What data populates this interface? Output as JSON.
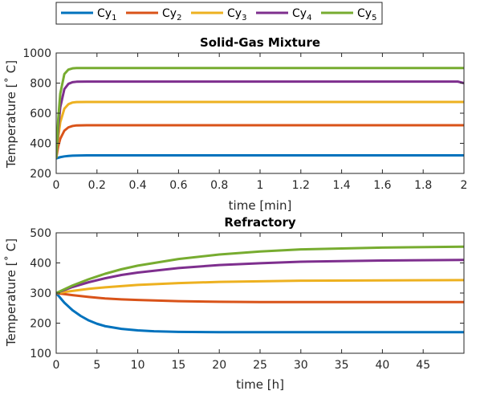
{
  "legend": {
    "entries": [
      {
        "base": "Cy",
        "sub": "1",
        "color": "#0072BD"
      },
      {
        "base": "Cy",
        "sub": "2",
        "color": "#D95319"
      },
      {
        "base": "Cy",
        "sub": "3",
        "color": "#EDB120"
      },
      {
        "base": "Cy",
        "sub": "4",
        "color": "#7E2F8E"
      },
      {
        "base": "Cy",
        "sub": "5",
        "color": "#77AC30"
      }
    ]
  },
  "chart_data": [
    {
      "type": "line",
      "title": "Solid-Gas Mixture",
      "xlabel": "time [min]",
      "ylabel": "Temperature [˚ C]",
      "xlim": [
        0,
        2
      ],
      "ylim": [
        200,
        1000
      ],
      "xticks": [
        "0",
        "0.2",
        "0.4",
        "0.6",
        "0.8",
        "1",
        "1.2",
        "1.4",
        "1.6",
        "1.8",
        "2"
      ],
      "yticks": [
        "200",
        "400",
        "600",
        "800",
        "1000"
      ],
      "grid": false,
      "series": [
        {
          "name": "Cy1",
          "color": "#0072BD",
          "x": [
            0,
            0.01,
            0.02,
            0.04,
            0.06,
            0.08,
            0.1,
            0.15,
            0.2,
            0.3,
            0.5,
            1.0,
            1.5,
            2.0
          ],
          "y": [
            300,
            304,
            308,
            313,
            316,
            318,
            319,
            320,
            320,
            320,
            320,
            320,
            320,
            320
          ]
        },
        {
          "name": "Cy2",
          "color": "#D95319",
          "x": [
            0,
            0.01,
            0.02,
            0.04,
            0.06,
            0.08,
            0.1,
            0.15,
            0.2,
            0.3,
            0.5,
            1.0,
            1.5,
            2.0
          ],
          "y": [
            300,
            380,
            430,
            484,
            506,
            515,
            519,
            520,
            520,
            520,
            520,
            520,
            520,
            520
          ]
        },
        {
          "name": "Cy3",
          "color": "#EDB120",
          "x": [
            0,
            0.01,
            0.02,
            0.04,
            0.06,
            0.08,
            0.1,
            0.15,
            0.2,
            0.3,
            0.5,
            1.0,
            1.5,
            2.0
          ],
          "y": [
            300,
            440,
            540,
            630,
            660,
            671,
            674,
            675,
            675,
            675,
            675,
            675,
            675,
            675
          ]
        },
        {
          "name": "Cy4",
          "color": "#7E2F8E",
          "x": [
            0,
            0.01,
            0.02,
            0.04,
            0.06,
            0.08,
            0.1,
            0.15,
            0.2,
            0.3,
            0.5,
            1.0,
            1.5,
            1.97,
            2.0
          ],
          "y": [
            300,
            500,
            640,
            760,
            795,
            806,
            809,
            810,
            810,
            810,
            810,
            810,
            810,
            810,
            800
          ]
        },
        {
          "name": "Cy5",
          "color": "#77AC30",
          "x": [
            0,
            0.01,
            0.02,
            0.04,
            0.06,
            0.08,
            0.1,
            0.15,
            0.2,
            0.3,
            0.5,
            1.0,
            1.5,
            2.0
          ],
          "y": [
            300,
            560,
            730,
            860,
            890,
            898,
            900,
            900,
            900,
            900,
            900,
            900,
            900,
            900
          ]
        }
      ]
    },
    {
      "type": "line",
      "title": "Refractory",
      "xlabel": "time [h]",
      "ylabel": "Temperature [˚ C]",
      "xlim": [
        0,
        50
      ],
      "ylim": [
        100,
        500
      ],
      "xticks": [
        "0",
        "5",
        "10",
        "15",
        "20",
        "25",
        "30",
        "35",
        "40",
        "45"
      ],
      "yticks": [
        "100",
        "200",
        "300",
        "400",
        "500"
      ],
      "grid": false,
      "series": [
        {
          "name": "Cy1",
          "color": "#0072BD",
          "x": [
            0,
            1,
            2,
            3,
            4,
            5,
            6,
            8,
            10,
            12,
            15,
            20,
            25,
            30,
            40,
            50
          ],
          "y": [
            300,
            268,
            243,
            224,
            209,
            198,
            190,
            181,
            176,
            173,
            171,
            170,
            170,
            170,
            170,
            170
          ]
        },
        {
          "name": "Cy2",
          "color": "#D95319",
          "x": [
            0,
            2,
            4,
            6,
            8,
            10,
            15,
            20,
            25,
            30,
            40,
            50
          ],
          "y": [
            300,
            293,
            287,
            282,
            279,
            277,
            273,
            271,
            270,
            270,
            270,
            270
          ]
        },
        {
          "name": "Cy3",
          "color": "#EDB120",
          "x": [
            0,
            2,
            4,
            6,
            8,
            10,
            15,
            20,
            25,
            30,
            40,
            50
          ],
          "y": [
            300,
            307,
            314,
            319,
            323,
            327,
            333,
            337,
            339,
            341,
            342,
            343
          ]
        },
        {
          "name": "Cy4",
          "color": "#7E2F8E",
          "x": [
            0,
            2,
            4,
            6,
            8,
            10,
            15,
            20,
            25,
            30,
            40,
            50
          ],
          "y": [
            300,
            320,
            336,
            349,
            360,
            368,
            383,
            393,
            399,
            404,
            408,
            410
          ]
        },
        {
          "name": "Cy5",
          "color": "#77AC30",
          "x": [
            0,
            2,
            4,
            6,
            8,
            10,
            15,
            20,
            25,
            30,
            40,
            50
          ],
          "y": [
            300,
            325,
            346,
            364,
            379,
            391,
            413,
            428,
            438,
            445,
            451,
            454
          ]
        }
      ]
    }
  ]
}
